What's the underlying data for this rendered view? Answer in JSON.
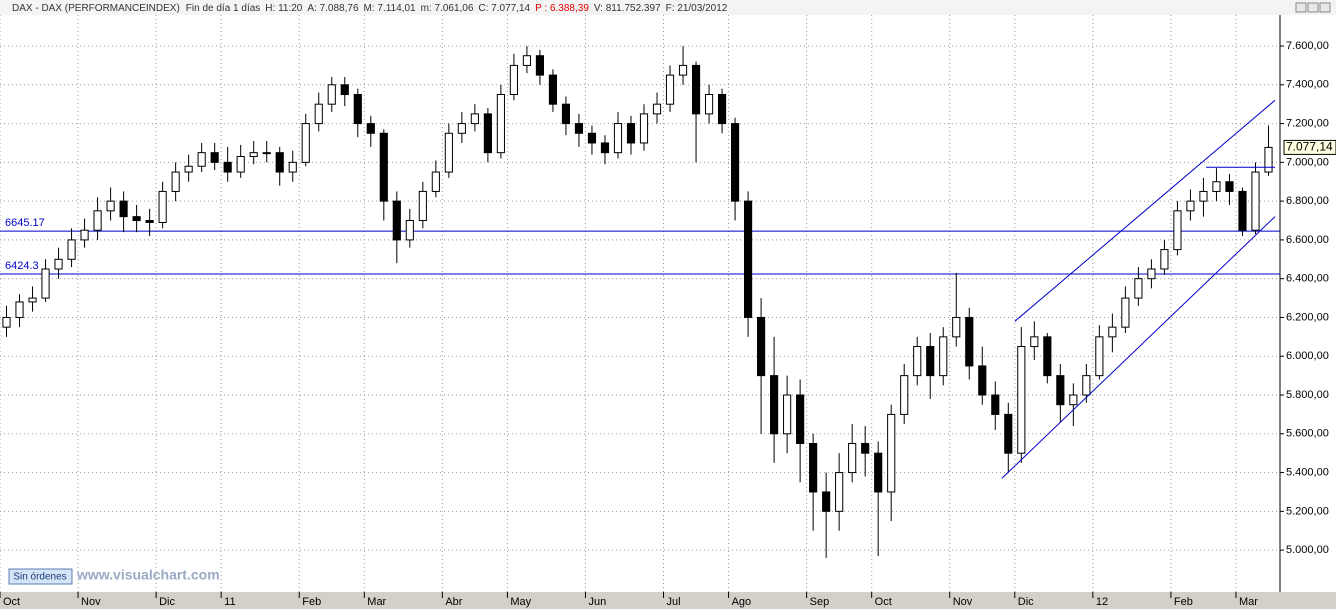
{
  "header": {
    "title": "DAX - DAX (PERFORMANCEINDEX)",
    "period": "Fin de día 1 días",
    "fields": [
      "H: 11:20",
      "A: 7.088,76",
      "M: 7.114,01",
      "m: 7.061,06",
      "C: 7.077,14"
    ],
    "prev": "P : 6.388,39",
    "fields2": [
      "V: 811.752.397",
      "F: 21/03/2012"
    ]
  },
  "footer": {
    "button": "Sin órdenes",
    "watermark": "www.visualchart.com"
  },
  "chart_data": {
    "type": "candlestick",
    "categories": [
      "Oct",
      null,
      null,
      null,
      null,
      null,
      "Nov",
      null,
      null,
      null,
      null,
      null,
      "Dic",
      null,
      null,
      null,
      null,
      "11",
      null,
      null,
      null,
      null,
      null,
      "Feb",
      null,
      null,
      null,
      null,
      "Mar",
      null,
      null,
      null,
      null,
      null,
      "Abr",
      null,
      null,
      null,
      null,
      "May",
      null,
      null,
      null,
      null,
      null,
      "Jun",
      null,
      null,
      null,
      null,
      null,
      "Jul",
      null,
      null,
      null,
      null,
      "Ago",
      null,
      null,
      null,
      null,
      null,
      "Sep",
      null,
      null,
      null,
      null,
      "Oct",
      null,
      null,
      null,
      null,
      null,
      "Nov",
      null,
      null,
      null,
      null,
      "Dic",
      null,
      null,
      null,
      null,
      null,
      "12",
      null,
      null,
      null,
      null,
      null,
      "Feb",
      null,
      null,
      null,
      null,
      "Mar",
      null,
      null
    ],
    "ohlc": [
      [
        6150,
        6260,
        6100,
        6200
      ],
      [
        6200,
        6320,
        6150,
        6280
      ],
      [
        6280,
        6360,
        6230,
        6300
      ],
      [
        6300,
        6500,
        6280,
        6450
      ],
      [
        6450,
        6560,
        6400,
        6500
      ],
      [
        6500,
        6660,
        6460,
        6600
      ],
      [
        6600,
        6710,
        6560,
        6650
      ],
      [
        6650,
        6820,
        6600,
        6750
      ],
      [
        6750,
        6870,
        6700,
        6800
      ],
      [
        6800,
        6850,
        6640,
        6720
      ],
      [
        6720,
        6780,
        6640,
        6700
      ],
      [
        6700,
        6760,
        6620,
        6690
      ],
      [
        6690,
        6900,
        6660,
        6850
      ],
      [
        6850,
        7000,
        6800,
        6950
      ],
      [
        6950,
        7040,
        6900,
        6980
      ],
      [
        6980,
        7100,
        6950,
        7050
      ],
      [
        7050,
        7100,
        6960,
        7000
      ],
      [
        7000,
        7080,
        6900,
        6950
      ],
      [
        6950,
        7090,
        6920,
        7030
      ],
      [
        7030,
        7110,
        6990,
        7050
      ],
      [
        7050,
        7110,
        7000,
        7050
      ],
      [
        7050,
        7080,
        6880,
        6950
      ],
      [
        6950,
        7060,
        6900,
        7000
      ],
      [
        7000,
        7250,
        6980,
        7200
      ],
      [
        7200,
        7360,
        7160,
        7300
      ],
      [
        7300,
        7440,
        7260,
        7400
      ],
      [
        7400,
        7440,
        7290,
        7350
      ],
      [
        7350,
        7380,
        7130,
        7200
      ],
      [
        7200,
        7240,
        7080,
        7150
      ],
      [
        7150,
        7170,
        6700,
        6800
      ],
      [
        6800,
        6850,
        6480,
        6600
      ],
      [
        6600,
        6760,
        6560,
        6700
      ],
      [
        6700,
        6900,
        6660,
        6850
      ],
      [
        6850,
        7010,
        6820,
        6950
      ],
      [
        6950,
        7200,
        6920,
        7150
      ],
      [
        7150,
        7260,
        7100,
        7200
      ],
      [
        7200,
        7300,
        7160,
        7250
      ],
      [
        7250,
        7280,
        7000,
        7050
      ],
      [
        7050,
        7400,
        7020,
        7350
      ],
      [
        7350,
        7560,
        7320,
        7500
      ],
      [
        7500,
        7600,
        7460,
        7550
      ],
      [
        7550,
        7580,
        7400,
        7450
      ],
      [
        7450,
        7480,
        7260,
        7300
      ],
      [
        7300,
        7340,
        7140,
        7200
      ],
      [
        7200,
        7250,
        7080,
        7150
      ],
      [
        7150,
        7190,
        7040,
        7100
      ],
      [
        7100,
        7140,
        6990,
        7050
      ],
      [
        7050,
        7260,
        7020,
        7200
      ],
      [
        7200,
        7240,
        7040,
        7100
      ],
      [
        7100,
        7300,
        7060,
        7250
      ],
      [
        7250,
        7360,
        7200,
        7300
      ],
      [
        7300,
        7500,
        7260,
        7450
      ],
      [
        7450,
        7600,
        7400,
        7500
      ],
      [
        7500,
        7520,
        7000,
        7250
      ],
      [
        7250,
        7400,
        7200,
        7350
      ],
      [
        7350,
        7380,
        7150,
        7200
      ],
      [
        7200,
        7230,
        6700,
        6800
      ],
      [
        6800,
        6850,
        6100,
        6200
      ],
      [
        6200,
        6300,
        5600,
        5900
      ],
      [
        5900,
        6100,
        5450,
        5600
      ],
      [
        5600,
        5900,
        5500,
        5800
      ],
      [
        5800,
        5880,
        5350,
        5550
      ],
      [
        5550,
        5600,
        5100,
        5300
      ],
      [
        5300,
        5400,
        4960,
        5200
      ],
      [
        5200,
        5500,
        5100,
        5400
      ],
      [
        5400,
        5650,
        5350,
        5550
      ],
      [
        5550,
        5640,
        5380,
        5500
      ],
      [
        5500,
        5560,
        4970,
        5300
      ],
      [
        5300,
        5750,
        5150,
        5700
      ],
      [
        5700,
        5960,
        5650,
        5900
      ],
      [
        5900,
        6100,
        5850,
        6050
      ],
      [
        6050,
        6120,
        5780,
        5900
      ],
      [
        5900,
        6150,
        5850,
        6100
      ],
      [
        6100,
        6430,
        6050,
        6200
      ],
      [
        6200,
        6250,
        5880,
        5950
      ],
      [
        5950,
        6050,
        5750,
        5800
      ],
      [
        5800,
        5870,
        5620,
        5700
      ],
      [
        5700,
        5760,
        5400,
        5500
      ],
      [
        5500,
        6150,
        5450,
        6050
      ],
      [
        6050,
        6180,
        5980,
        6100
      ],
      [
        6100,
        6120,
        5860,
        5900
      ],
      [
        5900,
        5960,
        5660,
        5750
      ],
      [
        5750,
        5860,
        5640,
        5800
      ],
      [
        5800,
        5960,
        5760,
        5900
      ],
      [
        5900,
        6160,
        5880,
        6100
      ],
      [
        6100,
        6220,
        6020,
        6150
      ],
      [
        6150,
        6360,
        6120,
        6300
      ],
      [
        6300,
        6460,
        6260,
        6400
      ],
      [
        6400,
        6500,
        6350,
        6450
      ],
      [
        6450,
        6600,
        6420,
        6550
      ],
      [
        6550,
        6800,
        6520,
        6750
      ],
      [
        6750,
        6860,
        6700,
        6800
      ],
      [
        6800,
        6920,
        6720,
        6850
      ],
      [
        6850,
        6970,
        6800,
        6900
      ],
      [
        6900,
        6940,
        6780,
        6850
      ],
      [
        6850,
        6870,
        6620,
        6650
      ],
      [
        6650,
        7000,
        6630,
        6950
      ],
      [
        6950,
        7190,
        6930,
        7077.14
      ]
    ],
    "up_color": "#ffffff",
    "down_color": "#000000",
    "ylim": [
      4784,
      7760
    ],
    "yticks": [
      {
        "value": 5000,
        "label": "5.000,00"
      },
      {
        "value": 5200,
        "label": "5.200,00"
      },
      {
        "value": 5400,
        "label": "5.400,00"
      },
      {
        "value": 5600,
        "label": "5.600,00"
      },
      {
        "value": 5800,
        "label": "5.800,00"
      },
      {
        "value": 6000,
        "label": "6.000,00"
      },
      {
        "value": 6200,
        "label": "6.200,00"
      },
      {
        "value": 6400,
        "label": "6.400,00"
      },
      {
        "value": 6600,
        "label": "6.600,00"
      },
      {
        "value": 6800,
        "label": "6.800,00"
      },
      {
        "value": 7000,
        "label": "7.000,00"
      },
      {
        "value": 7200,
        "label": "7.200,00"
      },
      {
        "value": 7400,
        "label": "7.400,00"
      },
      {
        "value": 7600,
        "label": "7.600,00"
      }
    ],
    "last_price": {
      "value": 7077.14,
      "label": "7.077,14"
    },
    "levels": [
      6645.17,
      6424.3
    ],
    "trendlines": [
      {
        "x": [
          77.5,
          97.5
        ],
        "y": [
          6180,
          7320
        ]
      },
      {
        "x": [
          76.5,
          97.5
        ],
        "y": [
          5370,
          6720
        ]
      },
      {
        "x": [
          92.2,
          97.5
        ],
        "y": [
          6975,
          6975
        ]
      }
    ],
    "line_color": "#0000cc",
    "grid": true
  }
}
